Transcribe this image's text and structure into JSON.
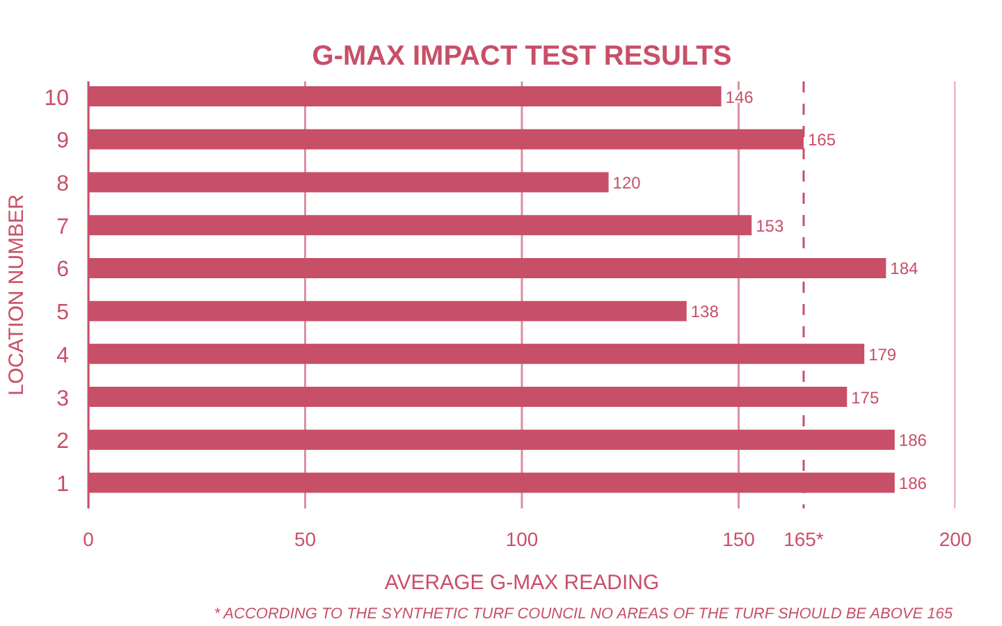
{
  "chart_data": {
    "type": "bar",
    "orientation": "horizontal",
    "title": "G-MAX IMPACT TEST RESULTS",
    "xlabel": "AVERAGE G-MAX READING",
    "ylabel": "LOCATION NUMBER",
    "categories": [
      "10",
      "9",
      "8",
      "7",
      "6",
      "5",
      "4",
      "3",
      "2",
      "1"
    ],
    "values": [
      146,
      165,
      120,
      153,
      184,
      138,
      179,
      175,
      186,
      186
    ],
    "color": "#c84f68",
    "xlim": [
      0,
      200
    ],
    "xticks": [
      0,
      50,
      100,
      150,
      {
        "value": 165,
        "label": "165*"
      },
      200
    ],
    "grid": "x",
    "data_labels": true,
    "ref_lines": [
      {
        "axis": "x",
        "value": 165,
        "color": "#c84f68",
        "line_style": "dashed"
      }
    ],
    "annotations": [
      "* ACCORDING TO THE SYNTHETIC TURF COUNCIL NO AREAS OF THE TURF SHOULD BE ABOVE 165"
    ]
  }
}
